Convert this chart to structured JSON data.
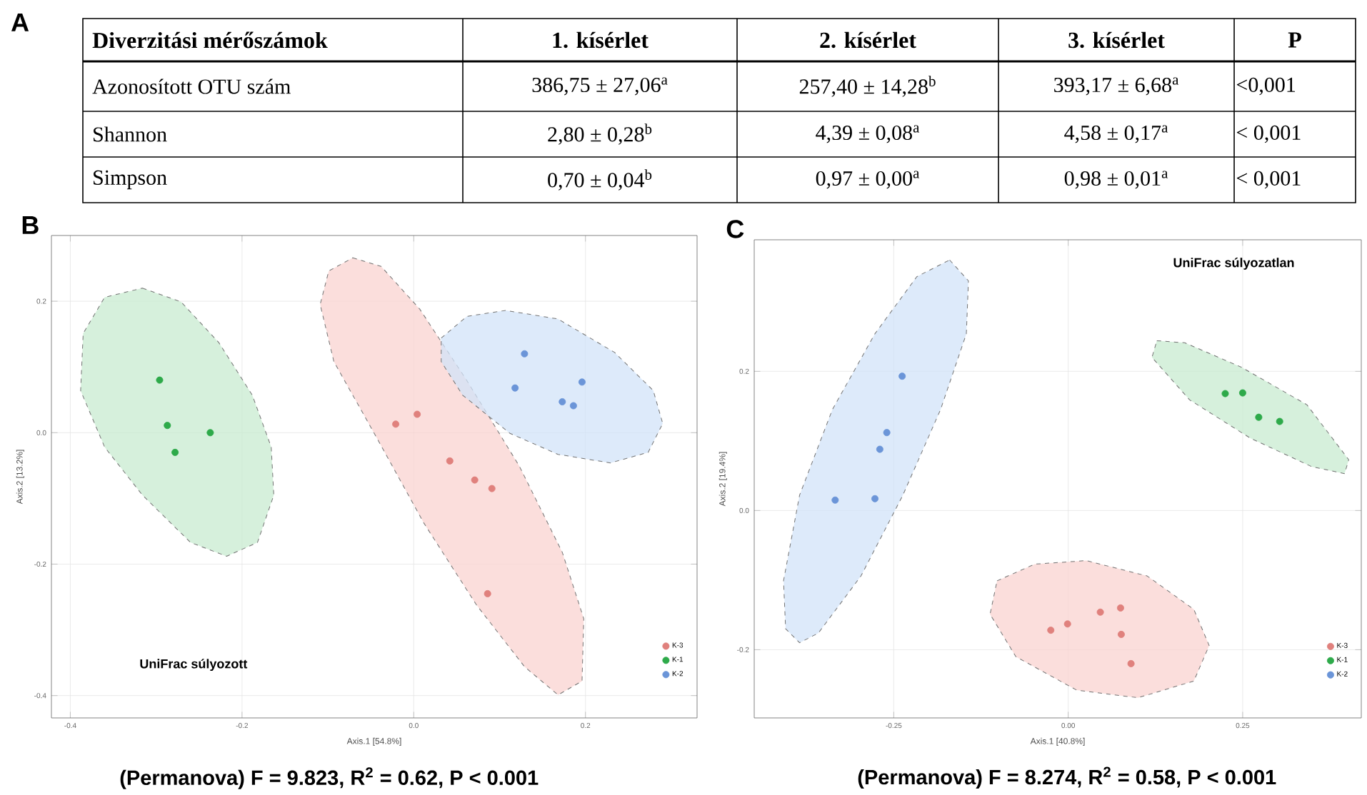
{
  "chart_data": [
    {
      "type": "other",
      "title": "A",
      "ylabel": "Diverzitási mérőszámok",
      "categories": [
        "1. kísérlet",
        "2. kísérlet",
        "3. kísérlet",
        "P"
      ],
      "y_categories": [
        "Azonosított OTU szám",
        "Shannon",
        "Simpson"
      ],
      "cell_labels": [
        [
          "386,75 ± 27,06$^{a}$",
          "257,40 ± 14,28$^{b}$",
          "393,17 ± 6,68$^{a}$",
          "<0,001"
        ],
        [
          "2,80 ± 0,28$^{b}$",
          "4,39 ± 0,08$^{a}$",
          "4,58 ± 0,17$^{a}$",
          "< 0,001"
        ],
        [
          "0,70 ± 0,04$^{b}$",
          "0,97 ± 0,00$^{a}$",
          "0,98 ± 0,01$^{a}$",
          "< 0,001"
        ]
      ]
    },
    {
      "type": "scatter",
      "title": "B",
      "xlabel": "Axis.1  [54.8%]",
      "ylabel": "Axis.2  [13.2%]",
      "annotations": [
        "UniFrac súlyozott",
        "(Permanova) F = 9.823, R$^{2}$ = 0.62, P < 0.001"
      ],
      "xlim": [
        -0.422,
        0.33
      ],
      "ylim": [
        -0.434,
        0.3
      ],
      "xticks": [
        -0.4,
        -0.2,
        {
          "value": 0,
          "label": "0.0"
        },
        0.2
      ],
      "yticks": [
        -0.4,
        -0.2,
        {
          "value": 0,
          "label": "0.0"
        },
        0.2
      ],
      "grid": true,
      "legend": "bottom right",
      "marker": "circle",
      "series": [
        {
          "type": "area",
          "marker": "none",
          "color": "#c8ebd0",
          "line_style": "dashed",
          "x": [
            -0.316,
            -0.271,
            -0.227,
            -0.188,
            -0.166,
            -0.163,
            -0.182,
            -0.218,
            -0.26,
            -0.316,
            -0.36,
            -0.388,
            -0.385,
            -0.36
          ],
          "values": [
            0.22,
            0.199,
            0.137,
            0.057,
            -0.022,
            -0.095,
            -0.167,
            -0.188,
            -0.167,
            -0.095,
            -0.022,
            0.064,
            0.151,
            0.206
          ]
        },
        {
          "type": "area",
          "marker": "none",
          "color": "#f9d3d0",
          "line_style": "dashed",
          "x": [
            -0.071,
            -0.038,
            0.007,
            0.062,
            0.123,
            0.173,
            0.198,
            0.196,
            0.168,
            0.129,
            0.073,
            0.012,
            -0.043,
            -0.093,
            -0.109,
            -0.099
          ],
          "values": [
            0.266,
            0.253,
            0.188,
            0.079,
            -0.051,
            -0.182,
            -0.283,
            -0.378,
            -0.399,
            -0.356,
            -0.262,
            -0.138,
            -0.008,
            0.108,
            0.195,
            0.246
          ]
        },
        {
          "type": "area",
          "marker": "none",
          "color": "#d2e3f8",
          "line_style": "dashed",
          "x": [
            0.032,
            0.062,
            0.107,
            0.168,
            0.234,
            0.279,
            0.29,
            0.273,
            0.229,
            0.168,
            0.112,
            0.057,
            0.032
          ],
          "values": [
            0.144,
            0.177,
            0.186,
            0.173,
            0.122,
            0.064,
            0.014,
            -0.03,
            -0.046,
            -0.033,
            -0.001,
            0.057,
            0.108
          ]
        },
        {
          "name": "K-3",
          "color": "#e0817d",
          "x": [
            -0.021,
            0.004,
            0.042,
            0.071,
            0.091,
            0.086
          ],
          "values": [
            0.013,
            0.028,
            -0.043,
            -0.072,
            -0.085,
            -0.245
          ]
        },
        {
          "name": "K-1",
          "color": "#2eaa4a",
          "x": [
            -0.296,
            -0.287,
            -0.278,
            -0.237
          ],
          "values": [
            0.08,
            0.011,
            -0.03,
            0.0
          ]
        },
        {
          "name": "K-2",
          "color": "#6b95d8",
          "x": [
            0.129,
            0.118,
            0.196,
            0.173,
            0.186
          ],
          "values": [
            0.12,
            0.068,
            0.077,
            0.047,
            0.041
          ]
        }
      ]
    },
    {
      "type": "scatter",
      "title": "C",
      "xlabel": "Axis.1  [40.8%]",
      "ylabel": "Axis.2  [19.4%]",
      "annotations": [
        "UniFrac súlyozatlan",
        "(Permanova) F = 8.274, R$^{2}$ = 0.58, P < 0.001"
      ],
      "xlim": [
        -0.45,
        0.42
      ],
      "ylim": [
        -0.298,
        0.389
      ],
      "xticks": [
        -0.25,
        {
          "value": 0,
          "label": "0.00"
        },
        0.25
      ],
      "yticks": [
        -0.2,
        {
          "value": 0,
          "label": "0.0"
        },
        0.2
      ],
      "grid": true,
      "legend": "bottom right",
      "marker": "circle",
      "series": [
        {
          "type": "area",
          "marker": "none",
          "color": "#d2e3f8",
          "line_style": "dashed",
          "x": [
            -0.17,
            -0.143,
            -0.146,
            -0.183,
            -0.237,
            -0.297,
            -0.358,
            -0.385,
            -0.405,
            -0.408,
            -0.385,
            -0.338,
            -0.277,
            -0.217
          ],
          "values": [
            0.36,
            0.33,
            0.254,
            0.145,
            0.022,
            -0.094,
            -0.176,
            -0.19,
            -0.17,
            -0.101,
            0.022,
            0.145,
            0.254,
            0.336
          ]
        },
        {
          "type": "area",
          "marker": "none",
          "color": "#c8ebd0",
          "line_style": "dashed",
          "x": [
            0.127,
            0.167,
            0.248,
            0.342,
            0.402,
            0.396,
            0.349,
            0.261,
            0.174,
            0.12
          ],
          "values": [
            0.244,
            0.241,
            0.206,
            0.152,
            0.073,
            0.053,
            0.063,
            0.104,
            0.159,
            0.22
          ]
        },
        {
          "type": "area",
          "marker": "none",
          "color": "#f9d3d0",
          "line_style": "dashed",
          "x": [
            -0.102,
            -0.048,
            0.026,
            0.113,
            0.18,
            0.202,
            0.18,
            0.1,
            0.012,
            -0.075,
            -0.112
          ],
          "values": [
            -0.101,
            -0.077,
            -0.072,
            -0.094,
            -0.142,
            -0.194,
            -0.245,
            -0.269,
            -0.258,
            -0.21,
            -0.149
          ]
        },
        {
          "name": "K-3",
          "color": "#e0817d",
          "x": [
            -0.025,
            -0.001,
            0.046,
            0.075,
            0.076,
            0.09
          ],
          "values": [
            -0.172,
            -0.163,
            -0.146,
            -0.14,
            -0.178,
            -0.22
          ]
        },
        {
          "name": "K-1",
          "color": "#2eaa4a",
          "x": [
            0.225,
            0.25,
            0.273,
            0.303
          ],
          "values": [
            0.168,
            0.169,
            0.134,
            0.128
          ]
        },
        {
          "name": "K-2",
          "color": "#6b95d8",
          "x": [
            -0.238,
            -0.26,
            -0.27,
            -0.334,
            -0.277
          ],
          "values": [
            0.193,
            0.112,
            0.088,
            0.015,
            0.017
          ]
        }
      ]
    }
  ]
}
